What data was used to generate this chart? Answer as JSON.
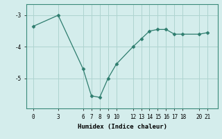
{
  "x": [
    0,
    3,
    6,
    7,
    8,
    9,
    10,
    12,
    13,
    14,
    15,
    16,
    17,
    18,
    20,
    21
  ],
  "y": [
    -3.35,
    -3.0,
    -4.7,
    -5.55,
    -5.6,
    -5.0,
    -4.55,
    -4.0,
    -3.75,
    -3.5,
    -3.45,
    -3.45,
    -3.6,
    -3.6,
    -3.6,
    -3.55
  ],
  "line_color": "#2e7d6e",
  "marker": "D",
  "marker_size": 2.5,
  "background_color": "#d4edec",
  "grid_color": "#aed4d0",
  "xlabel": "Humidex (Indice chaleur)",
  "yticks": [
    -3,
    -4,
    -5
  ],
  "xticks": [
    0,
    3,
    6,
    7,
    8,
    9,
    10,
    12,
    13,
    14,
    15,
    16,
    17,
    18,
    20,
    21
  ],
  "ylim": [
    -5.95,
    -2.65
  ],
  "xlim": [
    -0.8,
    22.2
  ]
}
